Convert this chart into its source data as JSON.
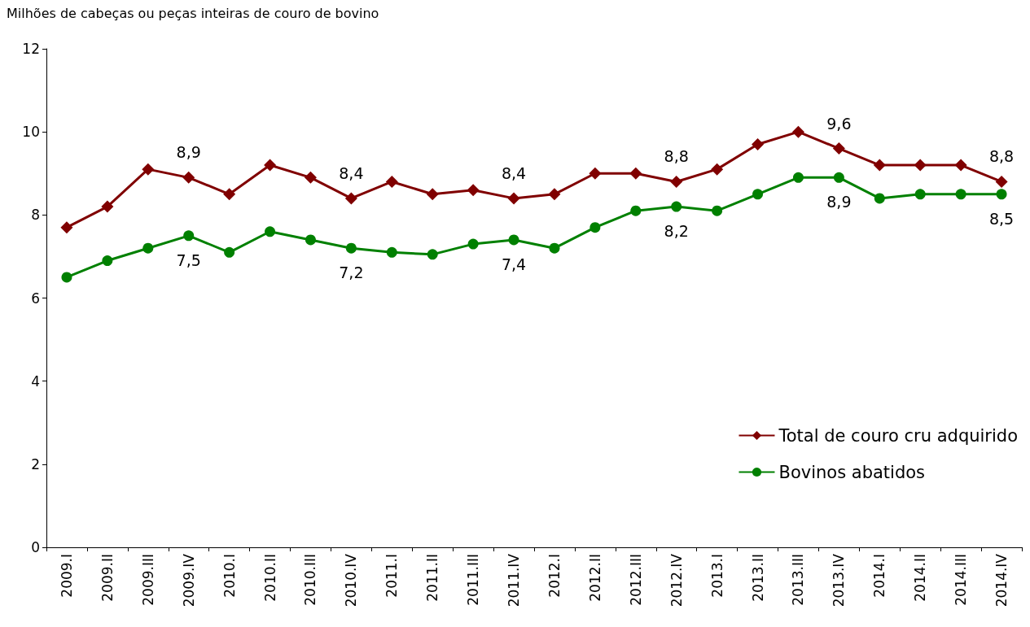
{
  "chart_data": {
    "type": "line",
    "ylabel": "Milhões de cabeças ou peças inteiras de couro de bovino",
    "categories": [
      "2009.I",
      "2009.II",
      "2009.III",
      "2009.IV",
      "2010.I",
      "2010.II",
      "2010.III",
      "2010.IV",
      "2011.I",
      "2011.II",
      "2011.III",
      "2011.IV",
      "2012.I",
      "2012.II",
      "2012.III",
      "2012.IV",
      "2013.I",
      "2013.II",
      "2013.III",
      "2013.IV",
      "2014.I",
      "2014.II",
      "2014.III",
      "2014.IV"
    ],
    "series": [
      {
        "name": "Total de couro cru adquirido",
        "color": "#800000",
        "marker": "diamond",
        "values": [
          7.7,
          8.2,
          9.1,
          8.9,
          8.5,
          9.2,
          8.9,
          8.4,
          8.8,
          8.5,
          8.6,
          8.4,
          8.5,
          9.0,
          9.0,
          8.8,
          9.1,
          9.7,
          10.0,
          9.6,
          9.2,
          9.2,
          9.2,
          8.8
        ],
        "value_labels": [
          null,
          null,
          null,
          "8,9",
          null,
          null,
          null,
          "8,4",
          null,
          null,
          null,
          "8,4",
          null,
          null,
          null,
          "8,8",
          null,
          null,
          null,
          "9,6",
          null,
          null,
          null,
          "8,8"
        ]
      },
      {
        "name": "Bovinos abatidos",
        "color": "#008000",
        "marker": "circle",
        "values": [
          6.5,
          6.9,
          7.2,
          7.5,
          7.1,
          7.6,
          7.4,
          7.2,
          7.1,
          7.05,
          7.3,
          7.4,
          7.2,
          7.7,
          8.1,
          8.2,
          8.1,
          8.5,
          8.9,
          8.9,
          8.4,
          8.5,
          8.5,
          8.5
        ],
        "value_labels": [
          null,
          null,
          null,
          "7,5",
          null,
          null,
          null,
          "7,2",
          null,
          null,
          null,
          "7,4",
          null,
          null,
          null,
          "8,2",
          null,
          null,
          null,
          "8,9",
          null,
          null,
          null,
          "8,5"
        ]
      }
    ],
    "ylim": [
      0,
      12
    ],
    "yticks": [
      0,
      2,
      4,
      6,
      8,
      10,
      12
    ],
    "grid": false,
    "legend": "bottom right",
    "line_style": "solid"
  }
}
